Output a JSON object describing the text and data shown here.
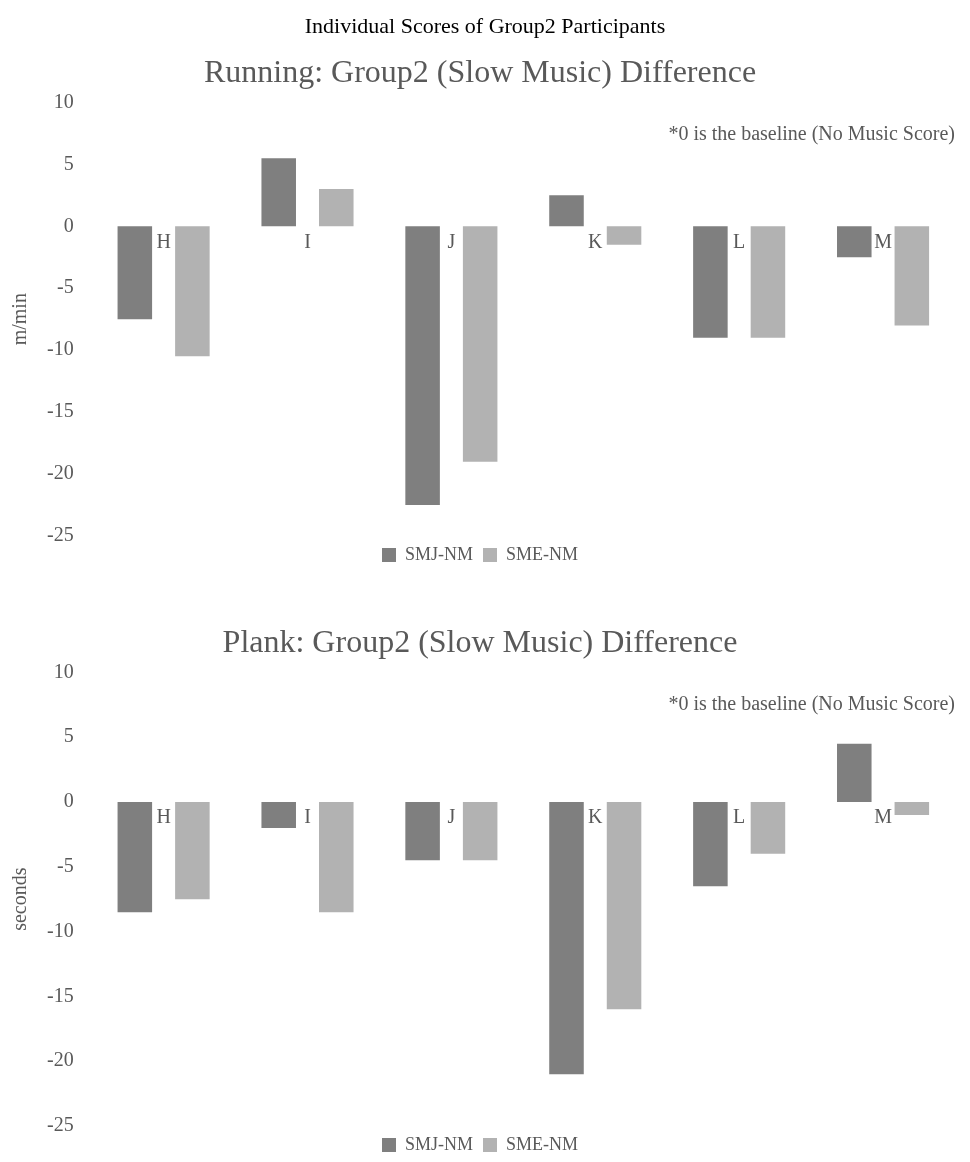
{
  "chart_data": [
    {
      "type": "bar",
      "title": "Running: Group2 (Slow Music) Difference",
      "ylabel": "m/min",
      "categories": [
        "H",
        "I",
        "J",
        "K",
        "L",
        "M"
      ],
      "series": [
        {
          "name": "SMJ-NM",
          "color": "#7f7f7f",
          "values": [
            -7.5,
            5.5,
            -22.5,
            2.5,
            -9,
            -2.5
          ]
        },
        {
          "name": "SME-NM",
          "color": "#b2b2b2",
          "values": [
            -10.5,
            3,
            -19,
            -1.5,
            -9,
            -8
          ]
        }
      ],
      "ylim": [
        -25,
        10
      ],
      "yticks": [
        10,
        5,
        0,
        -5,
        -10,
        -15,
        -20,
        -25
      ],
      "grid": false,
      "legend": "bottom",
      "annotations": [
        "Individual Scores of Group2 Participants",
        "*0 is the baseline (No Music Score)"
      ]
    },
    {
      "type": "bar",
      "title": "Plank: Group2 (Slow Music) Difference",
      "ylabel": "seconds",
      "categories": [
        "H",
        "I",
        "J",
        "K",
        "L",
        "M"
      ],
      "series": [
        {
          "name": "SMJ-NM",
          "color": "#7f7f7f",
          "values": [
            -8.5,
            -2,
            -4.5,
            -21,
            -6.5,
            4.5
          ]
        },
        {
          "name": "SME-NM",
          "color": "#b2b2b2",
          "values": [
            -7.5,
            -8.5,
            -4.5,
            -16,
            -4,
            -1
          ]
        }
      ],
      "ylim": [
        -25,
        10
      ],
      "yticks": [
        10,
        5,
        0,
        -5,
        -10,
        -15,
        -20,
        -25
      ],
      "grid": false,
      "legend": "bottom",
      "annotations": [
        "*0 is the baseline (No Music Score)"
      ]
    }
  ]
}
